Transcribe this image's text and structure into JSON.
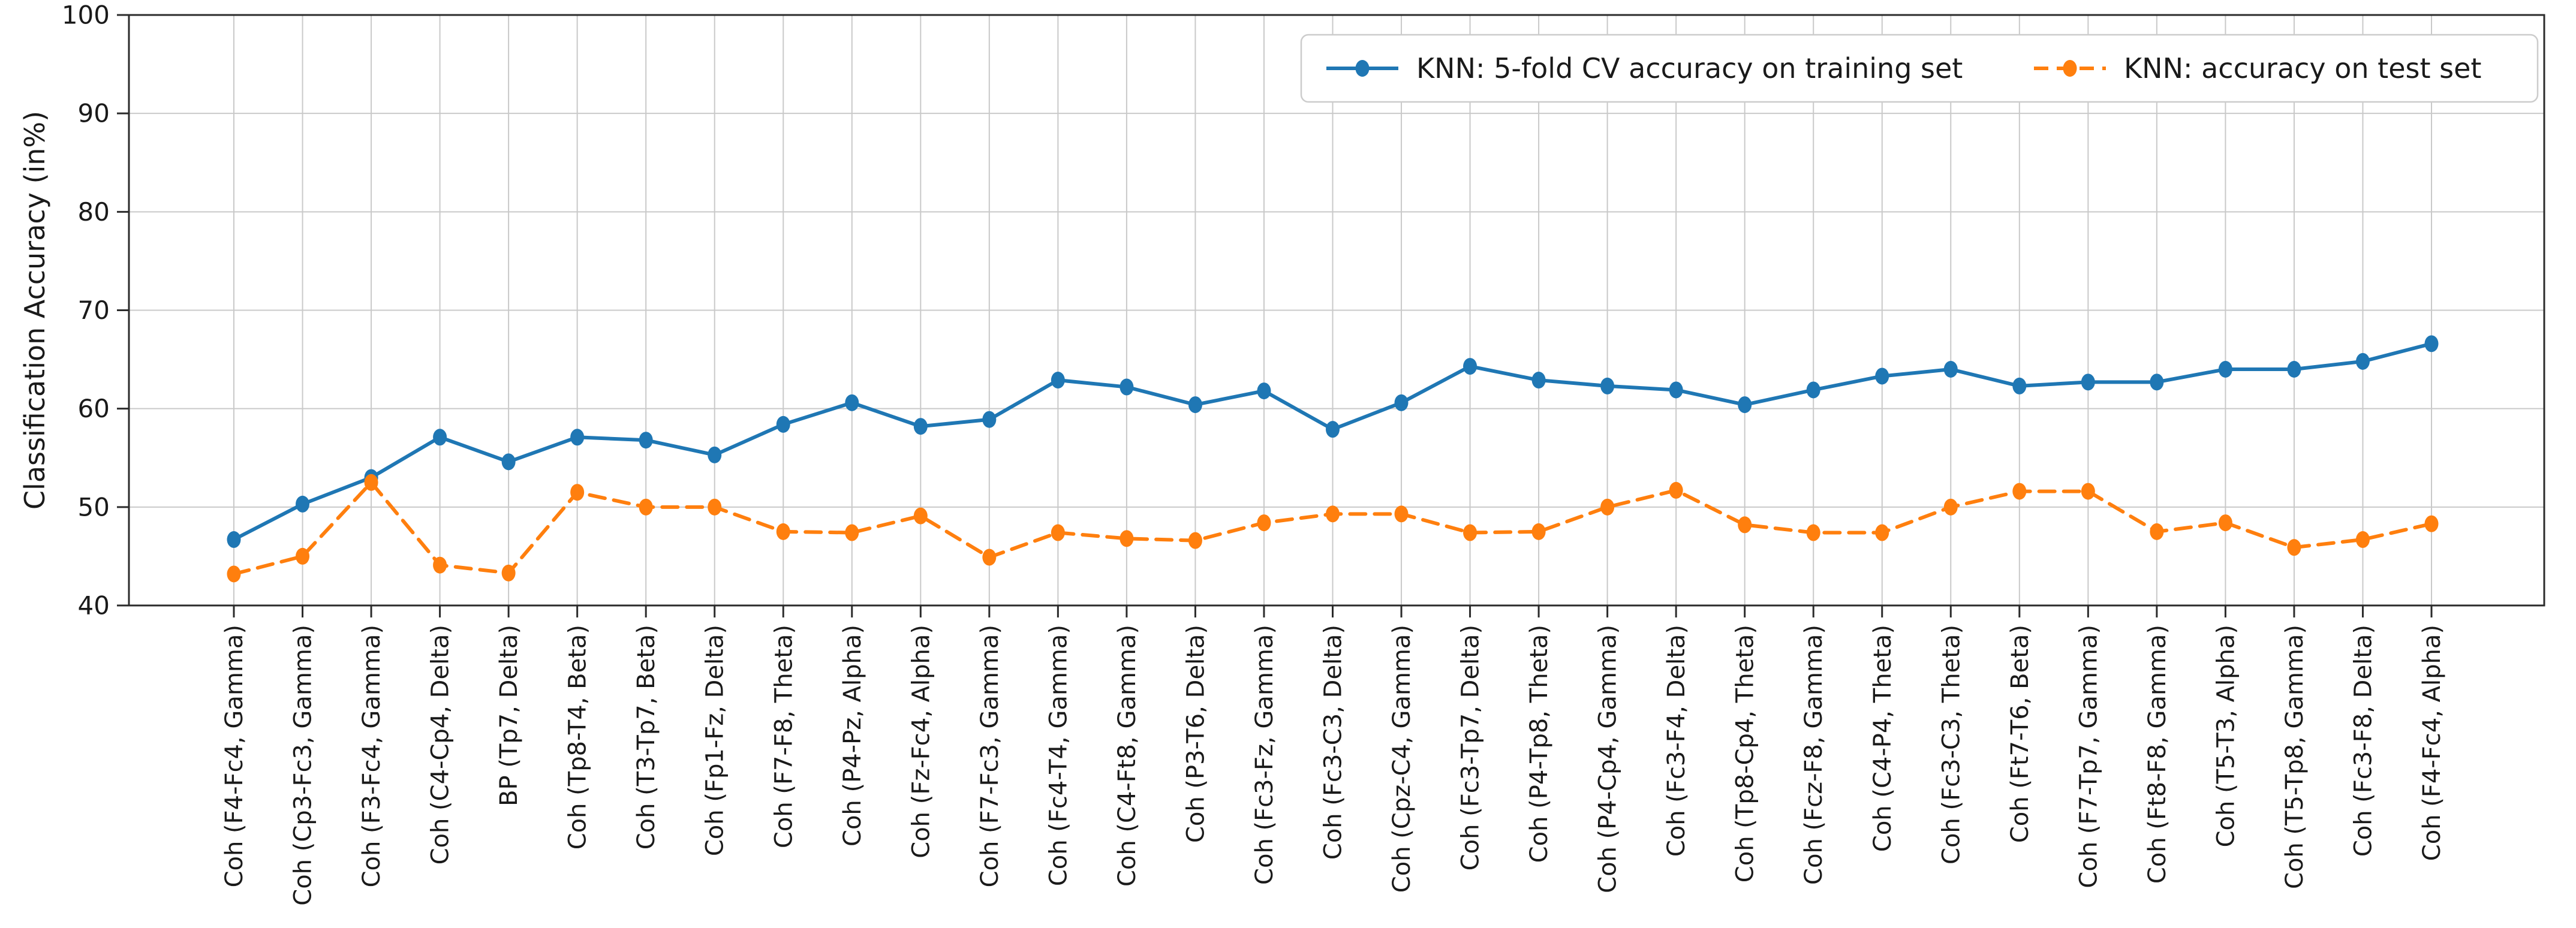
{
  "chart_data": {
    "type": "line",
    "title": "",
    "xlabel": "",
    "ylabel": "Classification Accuracy (in%)",
    "ylim": [
      40,
      100
    ],
    "yticks": [
      40,
      50,
      60,
      70,
      80,
      90,
      100
    ],
    "grid": true,
    "legend_position": "upper right",
    "categories": [
      "Coh (F4-Fc4, Gamma)",
      "Coh (Cp3-Fc3, Gamma)",
      "Coh (F3-Fc4, Gamma)",
      "Coh (C4-Cp4, Delta)",
      "BP (Tp7, Delta)",
      "Coh (Tp8-T4, Beta)",
      "Coh (T3-Tp7, Beta)",
      "Coh (Fp1-Fz, Delta)",
      "Coh (F7-F8, Theta)",
      "Coh (P4-Pz, Alpha)",
      "Coh (Fz-Fc4, Alpha)",
      "Coh (F7-Fc3, Gamma)",
      "Coh (Fc4-T4, Gamma)",
      "Coh (C4-Ft8, Gamma)",
      "Coh (P3-T6, Delta)",
      "Coh (Fc3-Fz, Gamma)",
      "Coh (Fc3-C3, Delta)",
      "Coh (Cpz-C4, Gamma)",
      "Coh (Fc3-Tp7, Delta)",
      "Coh (P4-Tp8, Theta)",
      "Coh (P4-Cp4, Gamma)",
      "Coh (Fc3-F4, Delta)",
      "Coh (Tp8-Cp4, Theta)",
      "Coh (Fcz-F8, Gamma)",
      "Coh (C4-P4, Theta)",
      "Coh (Fc3-C3, Theta)",
      "Coh (Ft7-T6, Beta)",
      "Coh (F7-Tp7, Gamma)",
      "Coh (Ft8-F8, Gamma)",
      "Coh (T5-T3, Alpha)",
      "Coh (T5-Tp8, Gamma)",
      "Coh (Fc3-F8, Delta)",
      "Coh (F4-Fc4, Alpha)"
    ],
    "series": [
      {
        "name": "KNN: 5-fold CV accuracy on training set",
        "color": "#1f77b4",
        "line_style": "solid",
        "marker": "circle",
        "values": [
          46.7,
          50.3,
          53.0,
          57.1,
          54.6,
          57.1,
          56.8,
          55.3,
          58.4,
          60.6,
          58.2,
          58.9,
          62.9,
          62.2,
          60.4,
          61.8,
          57.9,
          60.6,
          64.3,
          62.9,
          62.3,
          61.9,
          60.4,
          61.9,
          63.3,
          64.0,
          62.3,
          62.7,
          62.7,
          64.0,
          64.0,
          64.8,
          66.6
        ]
      },
      {
        "name": "KNN: accuracy on test set",
        "color": "#ff7f0e",
        "line_style": "dashed",
        "marker": "circle",
        "values": [
          43.2,
          45.0,
          52.5,
          44.1,
          43.3,
          51.5,
          50.0,
          50.0,
          47.5,
          47.4,
          49.1,
          44.9,
          47.4,
          46.8,
          46.6,
          48.4,
          49.3,
          49.3,
          47.4,
          47.5,
          50.0,
          51.7,
          48.2,
          47.4,
          47.4,
          50.0,
          51.6,
          51.6,
          47.5,
          48.4,
          45.9,
          46.7,
          48.3
        ]
      }
    ],
    "colors": {
      "grid": "#c9c9c9",
      "spine": "#2b2b2b",
      "tick_text": "#1a1a1a",
      "legend_border": "#cccccc",
      "background": "#ffffff"
    }
  }
}
